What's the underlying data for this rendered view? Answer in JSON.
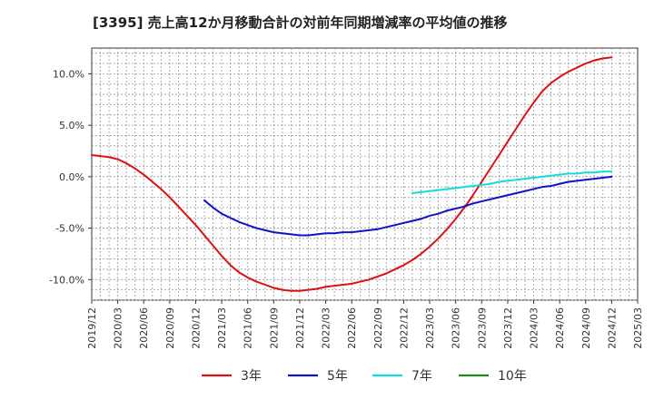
{
  "chart_data": {
    "type": "line",
    "title": "[3395]  売上高12か月移動合計の対前年同期増減率の平均値の推移",
    "xlabel": "",
    "ylabel": "",
    "ylim": [
      -12,
      12.5
    ],
    "yticks": [
      10,
      5,
      0,
      -5,
      -10
    ],
    "ytick_labels": [
      "10.0%",
      "5.0%",
      "0.0%",
      "-5.0%",
      "-10.0%"
    ],
    "xlim": [
      "2019-12",
      "2025-03"
    ],
    "xtick_labels": [
      "2019/12",
      "2020/03",
      "2020/06",
      "2020/09",
      "2020/12",
      "2021/03",
      "2021/06",
      "2021/09",
      "2021/12",
      "2022/03",
      "2022/06",
      "2022/09",
      "2022/12",
      "2023/03",
      "2023/06",
      "2023/09",
      "2023/12",
      "2024/03",
      "2024/06",
      "2024/09",
      "2024/12",
      "2025/03"
    ],
    "grid": true,
    "legend_position": "bottom",
    "series": [
      {
        "name": "3年",
        "color": "#dd1111",
        "x": [
          "2019-12",
          "2020-01",
          "2020-02",
          "2020-03",
          "2020-04",
          "2020-05",
          "2020-06",
          "2020-07",
          "2020-08",
          "2020-09",
          "2020-10",
          "2020-11",
          "2020-12",
          "2021-01",
          "2021-02",
          "2021-03",
          "2021-04",
          "2021-05",
          "2021-06",
          "2021-07",
          "2021-08",
          "2021-09",
          "2021-10",
          "2021-11",
          "2021-12",
          "2022-01",
          "2022-02",
          "2022-03",
          "2022-04",
          "2022-05",
          "2022-06",
          "2022-07",
          "2022-08",
          "2022-09",
          "2022-10",
          "2022-11",
          "2022-12",
          "2023-01",
          "2023-02",
          "2023-03",
          "2023-04",
          "2023-05",
          "2023-06",
          "2023-07",
          "2023-08",
          "2023-09",
          "2023-10",
          "2023-11",
          "2023-12",
          "2024-01",
          "2024-02",
          "2024-03",
          "2024-04",
          "2024-05",
          "2024-06",
          "2024-07",
          "2024-08",
          "2024-09",
          "2024-10",
          "2024-11",
          "2024-12"
        ],
        "values": [
          2.1,
          2.0,
          1.9,
          1.7,
          1.3,
          0.8,
          0.2,
          -0.5,
          -1.2,
          -2.0,
          -2.9,
          -3.8,
          -4.7,
          -5.7,
          -6.7,
          -7.7,
          -8.6,
          -9.3,
          -9.8,
          -10.2,
          -10.5,
          -10.8,
          -11.0,
          -11.1,
          -11.1,
          -11.0,
          -10.9,
          -10.7,
          -10.6,
          -10.5,
          -10.4,
          -10.2,
          -10.0,
          -9.7,
          -9.4,
          -9.0,
          -8.6,
          -8.1,
          -7.5,
          -6.8,
          -6.0,
          -5.1,
          -4.1,
          -3.0,
          -1.8,
          -0.5,
          0.8,
          2.1,
          3.4,
          4.7,
          6.0,
          7.2,
          8.3,
          9.1,
          9.7,
          10.2,
          10.6,
          11.0,
          11.3,
          11.5,
          11.6
        ]
      },
      {
        "name": "5年",
        "color": "#1111cc",
        "x": [
          "2021-01",
          "2021-02",
          "2021-03",
          "2021-04",
          "2021-05",
          "2021-06",
          "2021-07",
          "2021-08",
          "2021-09",
          "2021-10",
          "2021-11",
          "2021-12",
          "2022-01",
          "2022-02",
          "2022-03",
          "2022-04",
          "2022-05",
          "2022-06",
          "2022-07",
          "2022-08",
          "2022-09",
          "2022-10",
          "2022-11",
          "2022-12",
          "2023-01",
          "2023-02",
          "2023-03",
          "2023-04",
          "2023-05",
          "2023-06",
          "2023-07",
          "2023-08",
          "2023-09",
          "2023-10",
          "2023-11",
          "2023-12",
          "2024-01",
          "2024-02",
          "2024-03",
          "2024-04",
          "2024-05",
          "2024-06",
          "2024-07",
          "2024-08",
          "2024-09",
          "2024-10",
          "2024-11",
          "2024-12"
        ],
        "values": [
          -2.3,
          -3.0,
          -3.6,
          -4.0,
          -4.4,
          -4.7,
          -5.0,
          -5.2,
          -5.4,
          -5.5,
          -5.6,
          -5.7,
          -5.7,
          -5.6,
          -5.5,
          -5.5,
          -5.4,
          -5.4,
          -5.3,
          -5.2,
          -5.1,
          -4.9,
          -4.7,
          -4.5,
          -4.3,
          -4.1,
          -3.8,
          -3.6,
          -3.3,
          -3.1,
          -2.9,
          -2.6,
          -2.4,
          -2.2,
          -2.0,
          -1.8,
          -1.6,
          -1.4,
          -1.2,
          -1.0,
          -0.9,
          -0.7,
          -0.5,
          -0.4,
          -0.3,
          -0.2,
          -0.1,
          0.0
        ]
      },
      {
        "name": "7年",
        "color": "#11dddd",
        "x": [
          "2023-01",
          "2023-02",
          "2023-03",
          "2023-04",
          "2023-05",
          "2023-06",
          "2023-07",
          "2023-08",
          "2023-09",
          "2023-10",
          "2023-11",
          "2023-12",
          "2024-01",
          "2024-02",
          "2024-03",
          "2024-04",
          "2024-05",
          "2024-06",
          "2024-07",
          "2024-08",
          "2024-09",
          "2024-10",
          "2024-11",
          "2024-12"
        ],
        "values": [
          -1.6,
          -1.5,
          -1.4,
          -1.3,
          -1.2,
          -1.1,
          -1.0,
          -0.9,
          -0.8,
          -0.7,
          -0.5,
          -0.4,
          -0.3,
          -0.2,
          -0.1,
          0.0,
          0.1,
          0.2,
          0.3,
          0.3,
          0.4,
          0.4,
          0.5,
          0.5
        ]
      },
      {
        "name": "10年",
        "color": "#228822",
        "x": [],
        "values": []
      }
    ]
  }
}
